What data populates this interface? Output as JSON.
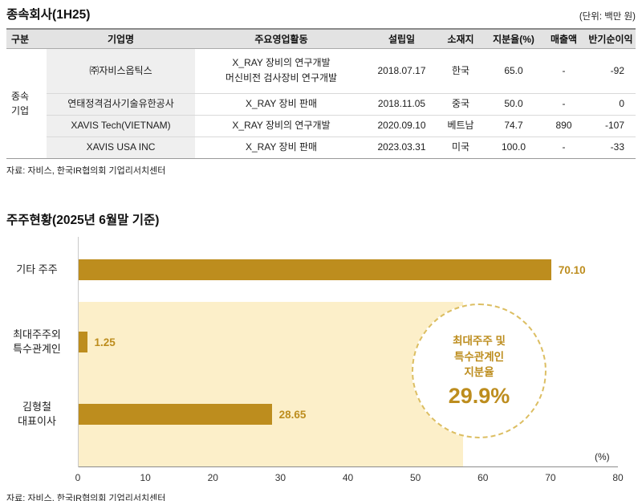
{
  "table_section": {
    "title": "종속회사(1H25)",
    "unit": "(단위: 백만 원)",
    "columns": [
      "구분",
      "기업명",
      "주요영업활동",
      "설립일",
      "소재지",
      "지분율(%)",
      "매출액",
      "반기순이익"
    ],
    "group_label": "종속\n기업",
    "rows": [
      {
        "company": "㈜자비스옵틱스",
        "activity": "X_RAY 장비의 연구개발\n머신비전 검사장비 연구개발",
        "founded": "2018.07.17",
        "country": "한국",
        "stake": "65.0",
        "revenue": "-",
        "net_income": "-92"
      },
      {
        "company": "연태정격검사기술유한공사",
        "activity": "X_RAY 장비 판매",
        "founded": "2018.11.05",
        "country": "중국",
        "stake": "50.0",
        "revenue": "-",
        "net_income": "0"
      },
      {
        "company": "XAVIS Tech(VIETNAM)",
        "activity": "X_RAY 장비의 연구개발",
        "founded": "2020.09.10",
        "country": "베트남",
        "stake": "74.7",
        "revenue": "890",
        "net_income": "-107"
      },
      {
        "company": "XAVIS USA INC",
        "activity": "X_RAY 장비 판매",
        "founded": "2023.03.31",
        "country": "미국",
        "stake": "100.0",
        "revenue": "-",
        "net_income": "-33"
      }
    ],
    "source": "자료: 자비스, 한국IR협의회 기업리서치센터"
  },
  "chart_section": {
    "title": "주주현황(2025년 6월말 기준)",
    "axis_unit": "(%)",
    "callout": {
      "text": "최대주주 및\n특수관계인\n지분율",
      "value": "29.9%"
    },
    "source": "자료: 자비스, 한국IR협의회 기업리서치센터"
  },
  "chart_data": {
    "type": "bar",
    "orientation": "horizontal",
    "title": "주주현황(2025년 6월말 기준)",
    "categories": [
      "기타 주주",
      "최대주주외\n특수관계인",
      "김형철\n대표이사"
    ],
    "values": [
      70.1,
      1.25,
      28.65
    ],
    "value_labels": [
      "70.10",
      "1.25",
      "28.65"
    ],
    "xlim": [
      0,
      80
    ],
    "xticks": [
      "0",
      "10",
      "20",
      "30",
      "40",
      "50",
      "60",
      "70",
      "80"
    ],
    "xlabel": "(%)",
    "grid": false,
    "legend": "none",
    "bar_color": "#bd8d1e",
    "highlight_region": {
      "x_start": 0,
      "x_end": 57,
      "color": "#fcefc9",
      "covers": [
        "최대주주외 특수관계인",
        "김형철 대표이사"
      ]
    },
    "annotation": {
      "text": "최대주주 및 특수관계인 지분율",
      "value_pct": 29.9
    }
  }
}
